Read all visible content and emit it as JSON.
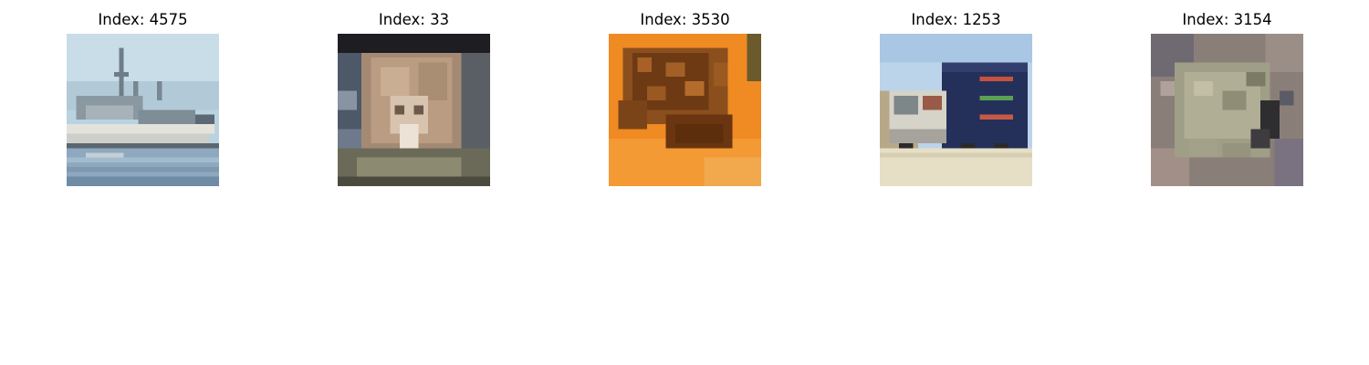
{
  "panels": [
    {
      "title": "Index: 4575",
      "depicts": "ship"
    },
    {
      "title": "Index: 33",
      "depicts": "cat"
    },
    {
      "title": "Index: 3530",
      "depicts": "frog"
    },
    {
      "title": "Index: 1253",
      "depicts": "truck"
    },
    {
      "title": "Index: 3154",
      "depicts": "frog"
    }
  ]
}
